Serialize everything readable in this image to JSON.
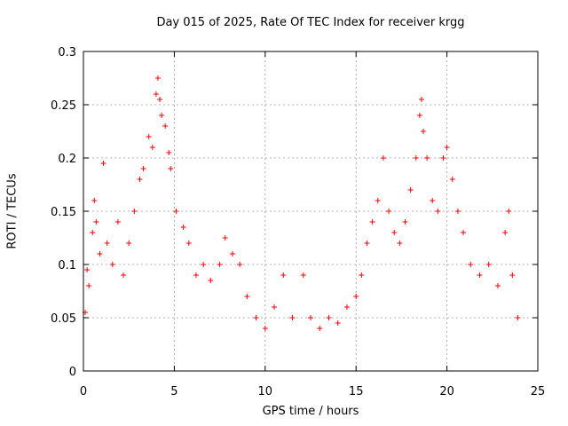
{
  "chart_data": {
    "type": "scatter",
    "title": "Day 015 of 2025, Rate Of TEC Index for receiver krgg",
    "xlabel": "GPS time / hours",
    "ylabel": "ROTI / TECUs",
    "xlim": [
      0,
      25
    ],
    "ylim": [
      0,
      0.3
    ],
    "xticks": [
      "0",
      "5",
      "10",
      "15",
      "20",
      "25"
    ],
    "yticks": [
      "0",
      "0.05",
      "0.1",
      "0.15",
      "0.2",
      "0.25",
      "0.3"
    ],
    "grid": true,
    "marker": "+",
    "color": "#ff0000",
    "series": [
      {
        "values": [
          [
            0.1,
            0.055
          ],
          [
            0.2,
            0.095
          ],
          [
            0.3,
            0.08
          ],
          [
            0.5,
            0.13
          ],
          [
            0.6,
            0.16
          ],
          [
            0.7,
            0.14
          ],
          [
            0.9,
            0.11
          ],
          [
            1.1,
            0.195
          ],
          [
            1.3,
            0.12
          ],
          [
            1.6,
            0.1
          ],
          [
            1.9,
            0.14
          ],
          [
            2.2,
            0.09
          ],
          [
            2.5,
            0.12
          ],
          [
            2.8,
            0.15
          ],
          [
            3.1,
            0.18
          ],
          [
            3.3,
            0.19
          ],
          [
            3.6,
            0.22
          ],
          [
            3.8,
            0.21
          ],
          [
            4.0,
            0.26
          ],
          [
            4.1,
            0.275
          ],
          [
            4.2,
            0.255
          ],
          [
            4.3,
            0.24
          ],
          [
            4.5,
            0.23
          ],
          [
            4.7,
            0.205
          ],
          [
            4.8,
            0.19
          ],
          [
            5.1,
            0.15
          ],
          [
            5.5,
            0.135
          ],
          [
            5.8,
            0.12
          ],
          [
            6.2,
            0.09
          ],
          [
            6.6,
            0.1
          ],
          [
            7.0,
            0.085
          ],
          [
            7.5,
            0.1
          ],
          [
            7.8,
            0.125
          ],
          [
            8.2,
            0.11
          ],
          [
            8.6,
            0.1
          ],
          [
            9.0,
            0.07
          ],
          [
            9.5,
            0.05
          ],
          [
            10.0,
            0.04
          ],
          [
            10.5,
            0.06
          ],
          [
            11.0,
            0.09
          ],
          [
            11.5,
            0.05
          ],
          [
            12.1,
            0.09
          ],
          [
            12.5,
            0.05
          ],
          [
            13.0,
            0.04
          ],
          [
            13.5,
            0.05
          ],
          [
            14.0,
            0.045
          ],
          [
            14.5,
            0.06
          ],
          [
            15.0,
            0.07
          ],
          [
            15.3,
            0.09
          ],
          [
            15.6,
            0.12
          ],
          [
            15.9,
            0.14
          ],
          [
            16.2,
            0.16
          ],
          [
            16.5,
            0.2
          ],
          [
            16.8,
            0.15
          ],
          [
            17.1,
            0.13
          ],
          [
            17.4,
            0.12
          ],
          [
            17.7,
            0.14
          ],
          [
            18.0,
            0.17
          ],
          [
            18.3,
            0.2
          ],
          [
            18.5,
            0.24
          ],
          [
            18.6,
            0.255
          ],
          [
            18.7,
            0.225
          ],
          [
            18.9,
            0.2
          ],
          [
            19.2,
            0.16
          ],
          [
            19.5,
            0.15
          ],
          [
            19.8,
            0.2
          ],
          [
            20.0,
            0.21
          ],
          [
            20.3,
            0.18
          ],
          [
            20.6,
            0.15
          ],
          [
            20.9,
            0.13
          ],
          [
            21.3,
            0.1
          ],
          [
            21.8,
            0.09
          ],
          [
            22.3,
            0.1
          ],
          [
            22.8,
            0.08
          ],
          [
            23.2,
            0.13
          ],
          [
            23.4,
            0.15
          ],
          [
            23.6,
            0.09
          ],
          [
            23.9,
            0.05
          ]
        ]
      }
    ]
  }
}
